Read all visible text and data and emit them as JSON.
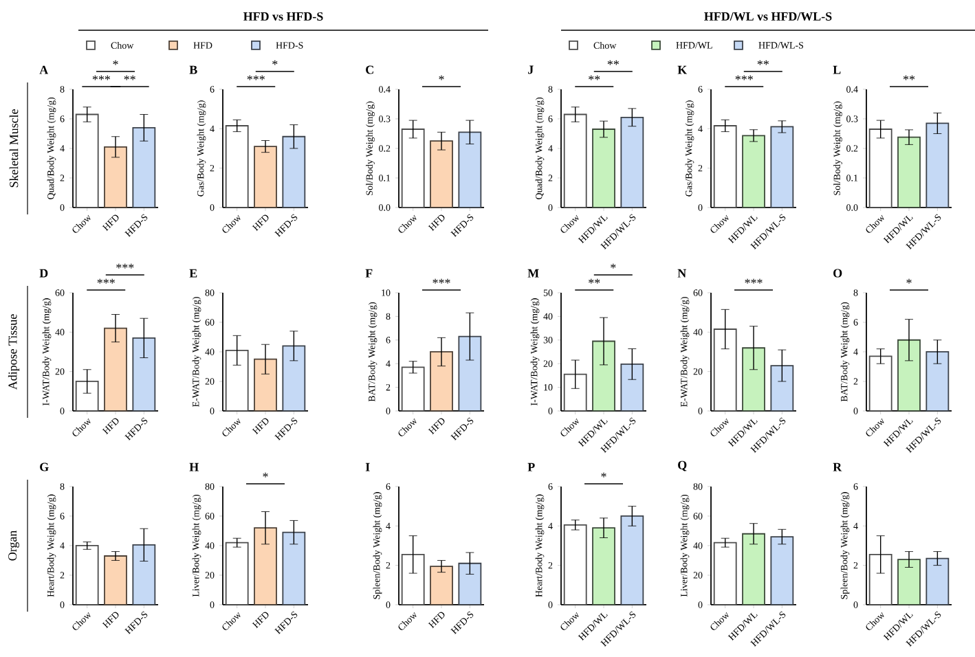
{
  "chart_data": [
    {
      "type": "other",
      "title": "HFD vs HFD-S",
      "categories": [
        "Chow",
        "HFD",
        "HFD-S"
      ],
      "colors": [
        "#ffffff",
        "#fcd5b4",
        "#c5d9f5"
      ]
    },
    {
      "type": "other",
      "title": "HFD/WL vs HFD/WL-S",
      "categories": [
        "Chow",
        "HFD/WL",
        "HFD/WL-S"
      ],
      "colors": [
        "#ffffff",
        "#c6f2bd",
        "#c5d9f5"
      ]
    },
    {
      "type": "other",
      "annotations": [
        "Skeletal Muscle",
        "Adipose Tissue",
        "Organ"
      ]
    },
    {
      "type": "bar",
      "title": "A",
      "ylabel": "Quad/Body Weight (mg/g)",
      "categories": [
        "Chow",
        "HFD",
        "HFD-S"
      ],
      "values": [
        6.3,
        4.1,
        5.4
      ],
      "errors": [
        0.5,
        0.7,
        0.9
      ],
      "colors": [
        "#ffffff",
        "#fcd5b4",
        "#c5d9f5"
      ],
      "ylim": [
        0,
        8
      ],
      "yticks": [
        0,
        2,
        4,
        6,
        8
      ],
      "annotations": [
        "***",
        "*",
        "**"
      ]
    },
    {
      "type": "bar",
      "title": "B",
      "ylabel": "Gas/Body Weight (mg/g)",
      "categories": [
        "Chow",
        "HFD",
        "HFD-S"
      ],
      "values": [
        4.15,
        3.1,
        3.6
      ],
      "errors": [
        0.3,
        0.3,
        0.6
      ],
      "colors": [
        "#ffffff",
        "#fcd5b4",
        "#c5d9f5"
      ],
      "ylim": [
        0,
        6
      ],
      "yticks": [
        0,
        2,
        4,
        6
      ],
      "annotations": [
        "***",
        "*"
      ]
    },
    {
      "type": "bar",
      "title": "C",
      "ylabel": "Sol/Body Weight (mg/g)",
      "categories": [
        "Chow",
        "HFD",
        "HFD-S"
      ],
      "values": [
        0.265,
        0.225,
        0.255
      ],
      "errors": [
        0.03,
        0.03,
        0.04
      ],
      "colors": [
        "#ffffff",
        "#fcd5b4",
        "#c5d9f5"
      ],
      "ylim": [
        0,
        0.4
      ],
      "yticks": [
        {
          "value": 0,
          "label": "0.0"
        },
        0.1,
        0.2,
        0.3,
        0.4
      ],
      "annotations": [
        "*"
      ]
    },
    {
      "type": "bar",
      "title": "J",
      "ylabel": "Quad/Body Weight (mg/g)",
      "categories": [
        "Chow",
        "HFD/WL",
        "HFD/WL-S"
      ],
      "values": [
        6.3,
        5.3,
        6.1
      ],
      "errors": [
        0.5,
        0.55,
        0.6
      ],
      "colors": [
        "#ffffff",
        "#c6f2bd",
        "#c5d9f5"
      ],
      "ylim": [
        0,
        8
      ],
      "yticks": [
        0,
        2,
        4,
        6,
        8
      ],
      "annotations": [
        "**",
        "**"
      ]
    },
    {
      "type": "bar",
      "title": "K",
      "ylabel": "Gas/Body Weight (mg/g)",
      "categories": [
        "Chow",
        "HFD/WL",
        "HFD/WL-S"
      ],
      "values": [
        4.15,
        3.65,
        4.1
      ],
      "errors": [
        0.3,
        0.3,
        0.3
      ],
      "colors": [
        "#ffffff",
        "#c6f2bd",
        "#c5d9f5"
      ],
      "ylim": [
        0,
        6
      ],
      "yticks": [
        0,
        2,
        4,
        6
      ],
      "annotations": [
        "***",
        "**"
      ]
    },
    {
      "type": "bar",
      "title": "L",
      "ylabel": "Sol/Body Weight (mg/g)",
      "categories": [
        "Chow",
        "HFD/WL",
        "HFD/WL-S"
      ],
      "values": [
        0.265,
        0.238,
        0.285
      ],
      "errors": [
        0.03,
        0.025,
        0.035
      ],
      "colors": [
        "#ffffff",
        "#c6f2bd",
        "#c5d9f5"
      ],
      "ylim": [
        0,
        0.4
      ],
      "yticks": [
        {
          "value": 0,
          "label": "0.0"
        },
        0.1,
        0.2,
        0.3,
        0.4
      ],
      "annotations": [
        "**"
      ]
    },
    {
      "type": "bar",
      "title": "D",
      "ylabel": "I-WAT/Body Weight (mg/g)",
      "categories": [
        "Chow",
        "HFD",
        "HFD-S"
      ],
      "values": [
        15,
        42,
        37
      ],
      "errors": [
        6,
        7,
        10
      ],
      "colors": [
        "#ffffff",
        "#fcd5b4",
        "#c5d9f5"
      ],
      "ylim": [
        0,
        60
      ],
      "yticks": [
        0,
        20,
        40,
        60
      ],
      "annotations": [
        "***",
        "***"
      ]
    },
    {
      "type": "bar",
      "title": "E",
      "ylabel": "E-WAT/Body Weight (mg/g)",
      "categories": [
        "Chow",
        "HFD",
        "HFD-S"
      ],
      "values": [
        41,
        35,
        44
      ],
      "errors": [
        10,
        10,
        10
      ],
      "colors": [
        "#ffffff",
        "#fcd5b4",
        "#c5d9f5"
      ],
      "ylim": [
        0,
        80
      ],
      "yticks": [
        0,
        20,
        40,
        60,
        80
      ]
    },
    {
      "type": "bar",
      "title": "F",
      "ylabel": "BAT/Body Weight (mg/g)",
      "categories": [
        "Chow",
        "HFD",
        "HFD-S"
      ],
      "values": [
        3.7,
        5.0,
        6.3
      ],
      "errors": [
        0.5,
        1.2,
        2.0
      ],
      "colors": [
        "#ffffff",
        "#fcd5b4",
        "#c5d9f5"
      ],
      "ylim": [
        0,
        10
      ],
      "yticks": [
        0,
        2,
        4,
        6,
        8,
        10
      ],
      "annotations": [
        "***"
      ]
    },
    {
      "type": "bar",
      "title": "M",
      "ylabel": "I-WAT/Body Weight (mg/g)",
      "categories": [
        "Chow",
        "HFD/WL",
        "HFD/WL-S"
      ],
      "values": [
        15.5,
        29.5,
        19.8
      ],
      "errors": [
        6,
        10,
        6.5
      ],
      "colors": [
        "#ffffff",
        "#c6f2bd",
        "#c5d9f5"
      ],
      "ylim": [
        0,
        50
      ],
      "yticks": [
        0,
        10,
        20,
        30,
        40,
        50
      ],
      "annotations": [
        "**",
        "*"
      ]
    },
    {
      "type": "bar",
      "title": "N",
      "ylabel": "E-WAT/Body Weight (mg/g)",
      "categories": [
        "Chow",
        "HFD/WL",
        "HFD/WL-S"
      ],
      "values": [
        41.5,
        32,
        23
      ],
      "errors": [
        10,
        11,
        8
      ],
      "colors": [
        "#ffffff",
        "#c6f2bd",
        "#c5d9f5"
      ],
      "ylim": [
        0,
        60
      ],
      "yticks": [
        0,
        20,
        40,
        60
      ],
      "annotations": [
        "***"
      ]
    },
    {
      "type": "bar",
      "title": "O",
      "ylabel": "BAT/Body Weight (mg/g)",
      "categories": [
        "Chow",
        "HFD/WL",
        "HFD/WL-S"
      ],
      "values": [
        3.7,
        4.8,
        4.0
      ],
      "errors": [
        0.5,
        1.4,
        0.8
      ],
      "colors": [
        "#ffffff",
        "#c6f2bd",
        "#c5d9f5"
      ],
      "ylim": [
        0,
        8
      ],
      "yticks": [
        0,
        2,
        4,
        6,
        8
      ],
      "annotations": [
        "*"
      ]
    },
    {
      "type": "bar",
      "title": "G",
      "ylabel": "Heart/Body Weight (mg/g)",
      "categories": [
        "Chow",
        "HFD",
        "HFD-S"
      ],
      "values": [
        4.0,
        3.3,
        4.05
      ],
      "errors": [
        0.25,
        0.3,
        1.1
      ],
      "colors": [
        "#ffffff",
        "#fcd5b4",
        "#c5d9f5"
      ],
      "ylim": [
        0,
        8
      ],
      "yticks": [
        0,
        2,
        4,
        6,
        8
      ]
    },
    {
      "type": "bar",
      "title": "H",
      "ylabel": "Liver/Body Weight (mg/g)",
      "categories": [
        "Chow",
        "HFD",
        "HFD-S"
      ],
      "values": [
        42,
        52,
        49
      ],
      "errors": [
        3,
        11,
        8
      ],
      "colors": [
        "#ffffff",
        "#fcd5b4",
        "#c5d9f5"
      ],
      "ylim": [
        0,
        80
      ],
      "yticks": [
        0,
        20,
        40,
        60,
        80
      ],
      "annotations": [
        "*"
      ]
    },
    {
      "type": "bar",
      "title": "I",
      "ylabel": "Spleen/Body Weight (mg/g)",
      "categories": [
        "Chow",
        "HFD",
        "HFD-S"
      ],
      "values": [
        2.55,
        1.95,
        2.1
      ],
      "errors": [
        0.95,
        0.3,
        0.55
      ],
      "colors": [
        "#ffffff",
        "#fcd5b4",
        "#c5d9f5"
      ],
      "ylim": [
        0,
        6
      ],
      "yticks": [
        0,
        2,
        4,
        6
      ]
    },
    {
      "type": "bar",
      "title": "P",
      "ylabel": "Heart/Body Weight (mg/g)",
      "categories": [
        "Chow",
        "HFD/WL",
        "HFD/WL-S"
      ],
      "values": [
        4.05,
        3.9,
        4.5
      ],
      "errors": [
        0.25,
        0.5,
        0.5
      ],
      "colors": [
        "#ffffff",
        "#c6f2bd",
        "#c5d9f5"
      ],
      "ylim": [
        0,
        6
      ],
      "yticks": [
        0,
        2,
        4,
        6
      ],
      "annotations": [
        "*"
      ]
    },
    {
      "type": "bar",
      "title": "Q",
      "ylabel": "Liver/Body Weight (mg/g)",
      "categories": [
        "Chow",
        "HFD/WL",
        "HFD/WL-S"
      ],
      "values": [
        42,
        48,
        46
      ],
      "errors": [
        3,
        7,
        5
      ],
      "colors": [
        "#ffffff",
        "#c6f2bd",
        "#c5d9f5"
      ],
      "ylim": [
        0,
        80
      ],
      "yticks": [
        0,
        20,
        40,
        60,
        80
      ]
    },
    {
      "type": "bar",
      "title": "R",
      "ylabel": "Spleen/Body Weight (mg/g)",
      "categories": [
        "Chow",
        "HFD/WL",
        "HFD/WL-S"
      ],
      "values": [
        2.55,
        2.3,
        2.35
      ],
      "errors": [
        0.95,
        0.4,
        0.35
      ],
      "colors": [
        "#ffffff",
        "#c6f2bd",
        "#c5d9f5"
      ],
      "ylim": [
        0,
        6
      ],
      "yticks": [
        0,
        2,
        4,
        6
      ]
    }
  ]
}
